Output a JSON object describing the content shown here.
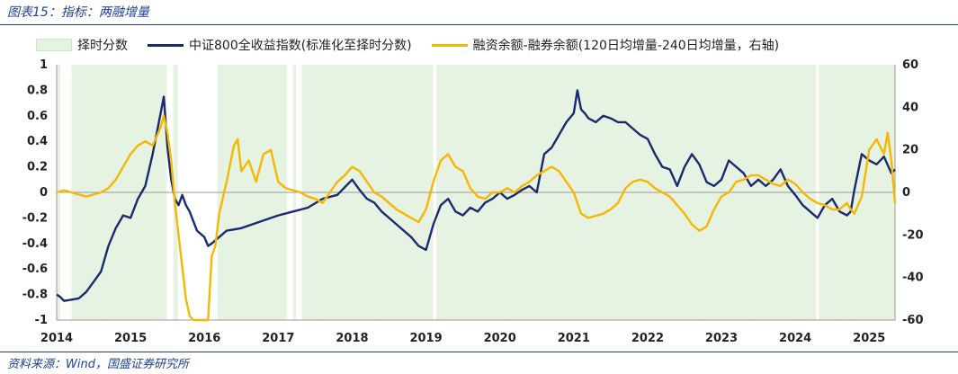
{
  "title": "图表15：指标：两融增量",
  "source": "资料来源：Wind，国盛证券研究所",
  "chart_data": {
    "type": "line",
    "legend": {
      "band": "择时分数",
      "index": "中证800全收益指数(标准化至择时分数)",
      "margin": "融资余额-融券余额(120日均增量-240日均增量，右轴)"
    },
    "colors": {
      "band": "#e6f2e2",
      "index": "#1a2a6c",
      "margin": "#f5b800"
    },
    "x_ticks": [
      "2014",
      "2015",
      "2016",
      "2017",
      "2018",
      "2019",
      "2020",
      "2021",
      "2022",
      "2023",
      "2024",
      "2025"
    ],
    "y_left": {
      "ticks": [
        "1",
        "0.8",
        "0.6",
        "0.4",
        "0.2",
        "0",
        "-0.2",
        "-0.4",
        "-0.6",
        "-0.8",
        "-1"
      ],
      "ylim": [
        -1,
        1
      ]
    },
    "y_right": {
      "ticks": [
        "60",
        "40",
        "20",
        "0",
        "-20",
        "-40",
        "-60"
      ],
      "ylim": [
        -60,
        60
      ]
    },
    "timing_bands": [
      [
        2014.0,
        2014.05
      ],
      [
        2014.2,
        2014.68
      ],
      [
        2014.68,
        2015.49
      ],
      [
        2015.58,
        2015.64
      ],
      [
        2016.18,
        2017.12
      ],
      [
        2017.2,
        2017.24
      ],
      [
        2017.32,
        2017.6
      ],
      [
        2017.6,
        2018.3
      ],
      [
        2018.3,
        2019.1
      ],
      [
        2019.14,
        2019.18
      ],
      [
        2019.16,
        2019.73
      ],
      [
        2019.73,
        2020.11
      ],
      [
        2020.11,
        2021.02
      ],
      [
        2021.02,
        2021.52
      ],
      [
        2021.52,
        2021.55
      ],
      [
        2021.55,
        2022.05
      ],
      [
        2022.05,
        2022.76
      ],
      [
        2022.76,
        2023.41
      ],
      [
        2023.41,
        2023.84
      ],
      [
        2023.84,
        2024.02
      ],
      [
        2024.02,
        2024.08
      ],
      [
        2024.08,
        2024.2
      ],
      [
        2024.2,
        2024.28
      ],
      [
        2024.32,
        2024.6
      ],
      [
        2024.6,
        2024.73
      ],
      [
        2024.73,
        2025.13
      ],
      [
        2025.13,
        2025.18
      ],
      [
        2025.18,
        2025.35
      ]
    ],
    "series": [
      {
        "name": "中证800全收益指数(标准化至择时分数)",
        "axis": "left",
        "x": [
          2014.0,
          2014.05,
          2014.1,
          2014.2,
          2014.3,
          2014.4,
          2014.5,
          2014.6,
          2014.7,
          2014.8,
          2014.9,
          2015.0,
          2015.1,
          2015.2,
          2015.3,
          2015.4,
          2015.45,
          2015.5,
          2015.55,
          2015.6,
          2015.65,
          2015.7,
          2015.75,
          2015.8,
          2015.9,
          2016.0,
          2016.05,
          2016.1,
          2016.2,
          2016.3,
          2016.5,
          2016.8,
          2017.0,
          2017.2,
          2017.4,
          2017.6,
          2017.8,
          2018.0,
          2018.1,
          2018.2,
          2018.3,
          2018.4,
          2018.5,
          2018.6,
          2018.7,
          2018.8,
          2018.9,
          2019.0,
          2019.05,
          2019.1,
          2019.2,
          2019.3,
          2019.4,
          2019.5,
          2019.6,
          2019.7,
          2019.8,
          2019.9,
          2020.0,
          2020.1,
          2020.2,
          2020.3,
          2020.4,
          2020.5,
          2020.6,
          2020.7,
          2020.8,
          2020.9,
          2021.0,
          2021.05,
          2021.1,
          2021.15,
          2021.2,
          2021.3,
          2021.4,
          2021.5,
          2021.6,
          2021.7,
          2021.8,
          2021.9,
          2022.0,
          2022.1,
          2022.2,
          2022.3,
          2022.4,
          2022.5,
          2022.6,
          2022.7,
          2022.8,
          2022.9,
          2023.0,
          2023.1,
          2023.2,
          2023.3,
          2023.4,
          2023.5,
          2023.6,
          2023.7,
          2023.8,
          2023.9,
          2024.0,
          2024.1,
          2024.2,
          2024.3,
          2024.4,
          2024.5,
          2024.6,
          2024.7,
          2024.75,
          2024.8,
          2024.9,
          2025.0,
          2025.1,
          2025.2,
          2025.3,
          2025.35
        ],
        "values": [
          -0.8,
          -0.82,
          -0.85,
          -0.84,
          -0.83,
          -0.78,
          -0.7,
          -0.62,
          -0.42,
          -0.28,
          -0.18,
          -0.2,
          -0.05,
          0.05,
          0.3,
          0.6,
          0.75,
          0.35,
          0.1,
          -0.05,
          -0.1,
          -0.02,
          -0.1,
          -0.15,
          -0.3,
          -0.35,
          -0.42,
          -0.4,
          -0.35,
          -0.3,
          -0.28,
          -0.22,
          -0.18,
          -0.15,
          -0.12,
          -0.05,
          -0.02,
          0.1,
          0.02,
          -0.05,
          -0.08,
          -0.15,
          -0.2,
          -0.25,
          -0.3,
          -0.35,
          -0.42,
          -0.45,
          -0.35,
          -0.25,
          -0.1,
          -0.05,
          -0.15,
          -0.18,
          -0.12,
          -0.15,
          -0.08,
          -0.05,
          0.0,
          -0.05,
          -0.02,
          0.02,
          0.05,
          0.0,
          0.3,
          0.35,
          0.45,
          0.55,
          0.62,
          0.8,
          0.65,
          0.62,
          0.58,
          0.55,
          0.6,
          0.58,
          0.55,
          0.55,
          0.5,
          0.45,
          0.42,
          0.3,
          0.2,
          0.18,
          0.05,
          0.2,
          0.3,
          0.22,
          0.08,
          0.05,
          0.1,
          0.25,
          0.2,
          0.15,
          0.05,
          0.1,
          0.05,
          0.1,
          0.18,
          0.05,
          -0.02,
          -0.1,
          -0.15,
          -0.2,
          -0.1,
          -0.05,
          -0.15,
          -0.18,
          -0.15,
          0.02,
          0.3,
          0.25,
          0.22,
          0.28,
          0.15,
          0.18
        ]
      },
      {
        "name": "融资余额-融券余额(120日均增量-240日均增量，右轴)",
        "axis": "right",
        "x": [
          2014.0,
          2014.1,
          2014.2,
          2014.3,
          2014.4,
          2014.5,
          2014.6,
          2014.7,
          2014.8,
          2014.9,
          2015.0,
          2015.1,
          2015.2,
          2015.3,
          2015.4,
          2015.45,
          2015.5,
          2015.55,
          2015.6,
          2015.65,
          2015.7,
          2015.75,
          2015.8,
          2015.85,
          2015.9,
          2015.95,
          2016.0,
          2016.05,
          2016.1,
          2016.15,
          2016.2,
          2016.3,
          2016.4,
          2016.45,
          2016.5,
          2016.6,
          2016.7,
          2016.8,
          2016.9,
          2017.0,
          2017.1,
          2017.2,
          2017.3,
          2017.4,
          2017.5,
          2017.6,
          2017.7,
          2017.8,
          2017.9,
          2018.0,
          2018.1,
          2018.2,
          2018.3,
          2018.4,
          2018.5,
          2018.6,
          2018.7,
          2018.8,
          2018.9,
          2019.0,
          2019.1,
          2019.2,
          2019.3,
          2019.4,
          2019.5,
          2019.6,
          2019.7,
          2019.8,
          2019.9,
          2020.0,
          2020.1,
          2020.2,
          2020.3,
          2020.4,
          2020.5,
          2020.6,
          2020.7,
          2020.8,
          2020.9,
          2021.0,
          2021.1,
          2021.2,
          2021.3,
          2021.4,
          2021.5,
          2021.6,
          2021.7,
          2021.8,
          2021.9,
          2022.0,
          2022.1,
          2022.2,
          2022.3,
          2022.4,
          2022.5,
          2022.6,
          2022.7,
          2022.8,
          2022.9,
          2023.0,
          2023.1,
          2023.2,
          2023.3,
          2023.4,
          2023.5,
          2023.6,
          2023.7,
          2023.8,
          2023.9,
          2024.0,
          2024.1,
          2024.2,
          2024.3,
          2024.4,
          2024.5,
          2024.6,
          2024.7,
          2024.75,
          2024.8,
          2024.9,
          2025.0,
          2025.1,
          2025.2,
          2025.25,
          2025.3,
          2025.35
        ],
        "values": [
          0,
          1,
          0,
          -1,
          -2,
          -1,
          0,
          2,
          6,
          12,
          18,
          22,
          24,
          22,
          30,
          36,
          28,
          15,
          -5,
          -20,
          -35,
          -50,
          -58,
          -62,
          -66,
          -70,
          -72,
          -60,
          -30,
          -25,
          -10,
          5,
          22,
          25,
          10,
          15,
          5,
          18,
          20,
          5,
          2,
          1,
          0,
          -2,
          -3,
          -5,
          0,
          5,
          8,
          12,
          10,
          5,
          0,
          -2,
          -5,
          -8,
          -10,
          -12,
          -14,
          -8,
          5,
          15,
          18,
          12,
          10,
          2,
          -2,
          -3,
          0,
          0,
          2,
          0,
          3,
          5,
          8,
          10,
          12,
          10,
          5,
          0,
          -10,
          -12,
          -11,
          -10,
          -8,
          -5,
          2,
          5,
          6,
          5,
          2,
          0,
          -2,
          -6,
          -10,
          -15,
          -18,
          -16,
          -8,
          -2,
          0,
          5,
          6,
          8,
          8,
          6,
          4,
          3,
          6,
          4,
          0,
          -3,
          -5,
          -6,
          -8,
          -8,
          -5,
          -8,
          -10,
          -2,
          20,
          25,
          18,
          28,
          15,
          -5
        ]
      }
    ]
  }
}
